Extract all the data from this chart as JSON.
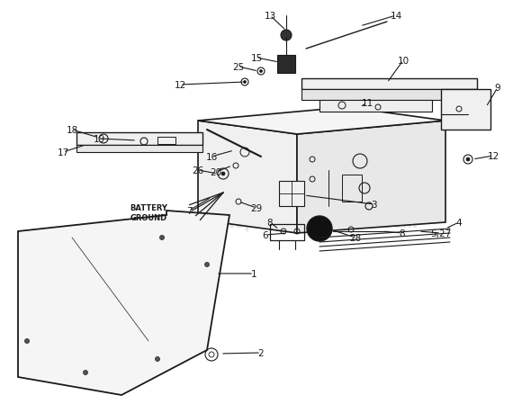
{
  "bg_color": "#ffffff",
  "line_color": "#1a1a1a",
  "watermark": "eReplacementParts.com",
  "watermark_color": "#c8c8c8",
  "figsize": [
    5.9,
    4.6
  ],
  "dpi": 100
}
